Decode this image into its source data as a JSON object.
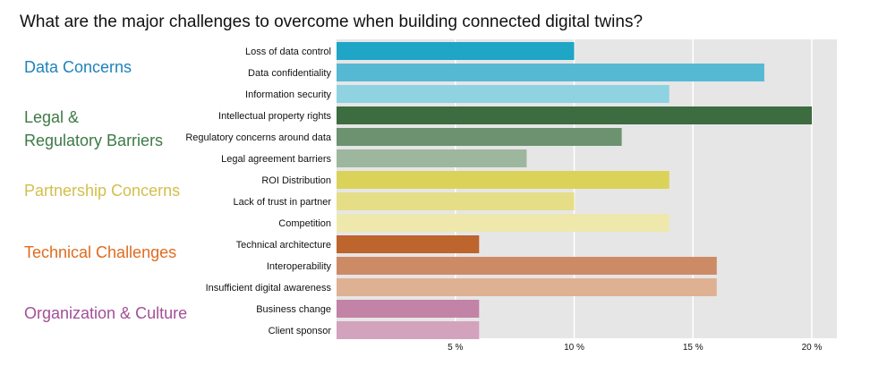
{
  "chart_data": {
    "type": "bar",
    "orientation": "horizontal",
    "title": "What are the major challenges to overcome when building connected digital twins?",
    "xlabel": "",
    "ylabel": "",
    "xlim": [
      0,
      21
    ],
    "xticks": [
      5,
      10,
      15,
      20
    ],
    "xtick_labels": [
      "5 %",
      "10 %",
      "15 %",
      "20 %"
    ],
    "grid": true,
    "groups": [
      {
        "name": "Data Concerns",
        "color": "#1f82bd",
        "lines": [
          "Data Concerns"
        ]
      },
      {
        "name": "Legal & Regulatory Barriers",
        "color": "#3d7a45",
        "lines": [
          "Legal &",
          "Regulatory Barriers"
        ]
      },
      {
        "name": "Partnership Concerns",
        "color": "#d2bf4c",
        "lines": [
          "Partnership Concerns"
        ]
      },
      {
        "name": "Technical Challenges",
        "color": "#df6b1f",
        "lines": [
          "Technical Challenges"
        ]
      },
      {
        "name": "Organization & Culture",
        "color": "#a44f98",
        "lines": [
          "Organization &  Culture"
        ]
      }
    ],
    "categories": [
      "Loss of data control",
      "Data confidentiality",
      "Information security",
      "Intellectual property rights",
      "Regulatory concerns around data",
      "Legal agreement barriers",
      "ROI Distribution",
      "Lack of trust in partner",
      "Competition",
      "Technical architecture",
      "Interoperability",
      "Insufficient digital awareness",
      "Business change",
      "Client sponsor"
    ],
    "values": [
      10,
      18,
      14,
      20,
      12,
      8,
      14,
      10,
      14,
      6,
      16,
      16,
      6,
      6
    ],
    "colors": [
      "#1fa5c6",
      "#56b9d3",
      "#8fd2e1",
      "#3c6c3f",
      "#6c9270",
      "#9db79e",
      "#dbd25a",
      "#e5de87",
      "#eee8ad",
      "#be642d",
      "#cd8b65",
      "#dfb193",
      "#c283a6",
      "#d3a3bd"
    ]
  }
}
